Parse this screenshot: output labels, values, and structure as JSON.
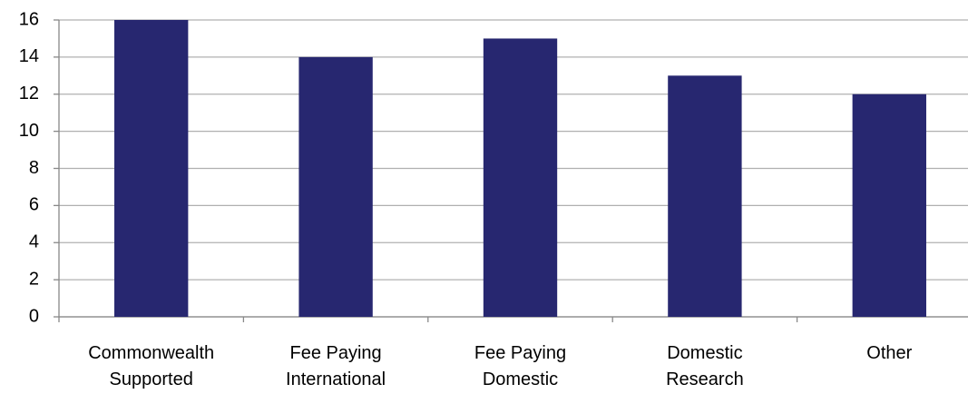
{
  "chart_data": {
    "type": "bar",
    "categories": [
      "Commonwealth\nSupported",
      "Fee Paying\nInternational",
      "Fee Paying\nDomestic",
      "Domestic\nResearch",
      "Other"
    ],
    "values": [
      16,
      14,
      15,
      13,
      12
    ],
    "color": "#272770",
    "ylim": [
      0,
      16
    ],
    "yticks": [
      0,
      2,
      4,
      6,
      8,
      10,
      12,
      14,
      16
    ],
    "grid": true
  }
}
